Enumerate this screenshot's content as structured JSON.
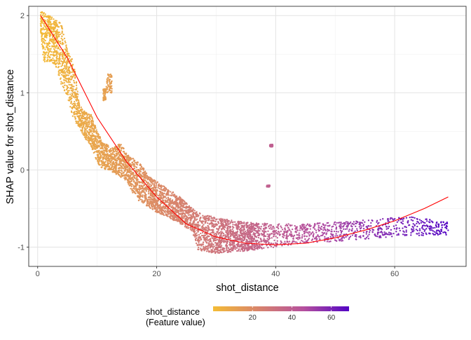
{
  "chart_data": {
    "type": "scatter",
    "xlabel": "shot_distance",
    "ylabel": "SHAP value for shot_distance",
    "xlim": [
      -1.5,
      72
    ],
    "ylim": [
      -1.25,
      2.12
    ],
    "xticks": [
      0,
      20,
      40,
      60
    ],
    "yticks": [
      -1,
      0,
      1,
      2
    ],
    "grid": true,
    "legend": {
      "position": "bottom",
      "title_lines": [
        "shot_distance",
        "(Feature value)"
      ],
      "ticks": [
        20,
        40,
        60
      ],
      "range": [
        0,
        69
      ],
      "colors": [
        "#F4BC36",
        "#D8846C",
        "#B5509E",
        "#5304C4"
      ]
    },
    "point_cloud_profile": [
      {
        "x": 0.5,
        "y_min": 1.8,
        "y_max": 2.05
      },
      {
        "x": 1,
        "y_min": 1.4,
        "y_max": 2.05
      },
      {
        "x": 2,
        "y_min": 1.4,
        "y_max": 2.0
      },
      {
        "x": 3,
        "y_min": 1.35,
        "y_max": 1.95
      },
      {
        "x": 4,
        "y_min": 1.1,
        "y_max": 1.9
      },
      {
        "x": 5,
        "y_min": 0.95,
        "y_max": 1.55
      },
      {
        "x": 6,
        "y_min": 0.65,
        "y_max": 1.45
      },
      {
        "x": 7,
        "y_min": 0.55,
        "y_max": 0.85
      },
      {
        "x": 8,
        "y_min": 0.4,
        "y_max": 0.75
      },
      {
        "x": 9,
        "y_min": 0.3,
        "y_max": 0.72
      },
      {
        "x": 10,
        "y_min": 0.1,
        "y_max": 0.5
      },
      {
        "x": 11,
        "y_min": 0.0,
        "y_max": 0.35
      },
      {
        "x": 12,
        "y_min": 0.0,
        "y_max": 0.32
      },
      {
        "x": 13,
        "y_min": -0.05,
        "y_max": 0.3
      },
      {
        "x": 14,
        "y_min": -0.1,
        "y_max": 0.35
      },
      {
        "x": 15,
        "y_min": -0.15,
        "y_max": 0.2
      },
      {
        "x": 16,
        "y_min": -0.3,
        "y_max": 0.15
      },
      {
        "x": 17,
        "y_min": -0.4,
        "y_max": 0.1
      },
      {
        "x": 18,
        "y_min": -0.45,
        "y_max": 0.0
      },
      {
        "x": 19,
        "y_min": -0.5,
        "y_max": -0.1
      },
      {
        "x": 20,
        "y_min": -0.55,
        "y_max": -0.15
      },
      {
        "x": 22,
        "y_min": -0.62,
        "y_max": -0.25
      },
      {
        "x": 24,
        "y_min": -0.7,
        "y_max": -0.35
      },
      {
        "x": 26,
        "y_min": -0.8,
        "y_max": -0.5
      },
      {
        "x": 27,
        "y_min": -1.05,
        "y_max": -0.55
      },
      {
        "x": 30,
        "y_min": -1.08,
        "y_max": -0.62
      },
      {
        "x": 35,
        "y_min": -1.05,
        "y_max": -0.68
      },
      {
        "x": 40,
        "y_min": -1.0,
        "y_max": -0.7
      },
      {
        "x": 45,
        "y_min": -0.95,
        "y_max": -0.7
      },
      {
        "x": 55,
        "y_min": -0.9,
        "y_max": -0.65
      },
      {
        "x": 62,
        "y_min": -0.85,
        "y_max": -0.6
      },
      {
        "x": 69,
        "y_min": -0.85,
        "y_max": -0.68
      }
    ],
    "outlier_clusters": [
      {
        "x_range": [
          11.5,
          12.5
        ],
        "y_range": [
          1.0,
          1.25
        ]
      },
      {
        "x_range": [
          11.0,
          11.5
        ],
        "y_range": [
          0.9,
          1.05
        ]
      },
      {
        "x_range": [
          39.0,
          39.5
        ],
        "y_range": [
          0.3,
          0.33
        ]
      },
      {
        "x_range": [
          38.5,
          39.0
        ],
        "y_range": [
          -0.2,
          -0.22
        ]
      }
    ],
    "smooth_fit": {
      "color": "#FF0000",
      "points": [
        [
          0.5,
          2.0
        ],
        [
          5,
          1.45
        ],
        [
          10,
          0.68
        ],
        [
          15,
          0.1
        ],
        [
          20,
          -0.35
        ],
        [
          25,
          -0.7
        ],
        [
          30,
          -0.87
        ],
        [
          35,
          -0.95
        ],
        [
          40,
          -0.97
        ],
        [
          45,
          -0.95
        ],
        [
          50,
          -0.88
        ],
        [
          55,
          -0.78
        ],
        [
          60,
          -0.66
        ],
        [
          65,
          -0.5
        ],
        [
          69,
          -0.35
        ]
      ]
    }
  }
}
